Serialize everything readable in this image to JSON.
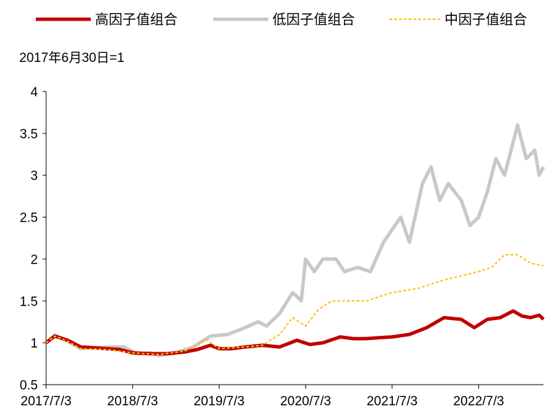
{
  "chart_data": {
    "type": "line",
    "title": "",
    "unit_note": "2017年6月30日=1",
    "xlabel": "",
    "ylabel": "",
    "ylim": [
      0.5,
      4
    ],
    "yticks": [
      "0.5",
      "1",
      "1.5",
      "2",
      "2.5",
      "3",
      "3.5",
      "4"
    ],
    "yticks_values": [
      0.5,
      1,
      1.5,
      2,
      2.5,
      3,
      3.5,
      4
    ],
    "xlim": [
      2017.5,
      2023.25
    ],
    "xticks": [
      "2017/7/3",
      "2018/7/3",
      "2019/7/3",
      "2020/7/3",
      "2021/7/3",
      "2022/7/3"
    ],
    "xticks_values": [
      2017.5,
      2018.5,
      2019.5,
      2020.5,
      2021.5,
      2022.5
    ],
    "legend_position": "top",
    "series": [
      {
        "name": "高因子值组合",
        "color": "#C00000",
        "style": "solid-thick",
        "x": [
          2017.5,
          2017.6,
          2017.75,
          2017.9,
          2018.05,
          2018.2,
          2018.35,
          2018.5,
          2018.7,
          2018.9,
          2019.1,
          2019.25,
          2019.4,
          2019.5,
          2019.65,
          2019.8,
          2020.0,
          2020.2,
          2020.4,
          2020.55,
          2020.7,
          2020.9,
          2021.05,
          2021.2,
          2021.35,
          2021.5,
          2021.7,
          2021.9,
          2022.1,
          2022.3,
          2022.45,
          2022.6,
          2022.75,
          2022.9,
          2023.0,
          2023.1,
          2023.2,
          2023.25
        ],
        "y": [
          1.0,
          1.08,
          1.03,
          0.95,
          0.94,
          0.93,
          0.92,
          0.88,
          0.87,
          0.87,
          0.89,
          0.92,
          0.97,
          0.93,
          0.93,
          0.95,
          0.97,
          0.95,
          1.03,
          0.98,
          1.0,
          1.07,
          1.05,
          1.05,
          1.06,
          1.07,
          1.1,
          1.18,
          1.3,
          1.28,
          1.18,
          1.28,
          1.3,
          1.38,
          1.32,
          1.3,
          1.33,
          1.28
        ]
      },
      {
        "name": "低因子值组合",
        "color": "#C8C8C8",
        "style": "solid-thick",
        "x": [
          2017.5,
          2017.6,
          2017.75,
          2017.9,
          2018.05,
          2018.2,
          2018.4,
          2018.55,
          2018.7,
          2018.8,
          2019.0,
          2019.2,
          2019.4,
          2019.6,
          2019.8,
          2019.95,
          2020.05,
          2020.2,
          2020.35,
          2020.45,
          2020.5,
          2020.6,
          2020.7,
          2020.85,
          2020.95,
          2021.1,
          2021.25,
          2021.4,
          2021.6,
          2021.7,
          2021.85,
          2021.95,
          2022.05,
          2022.15,
          2022.3,
          2022.4,
          2022.5,
          2022.6,
          2022.7,
          2022.8,
          2022.95,
          2023.05,
          2023.15,
          2023.2,
          2023.25
        ],
        "y": [
          1.0,
          1.09,
          1.02,
          0.93,
          0.94,
          0.95,
          0.95,
          0.87,
          0.88,
          0.85,
          0.88,
          0.95,
          1.08,
          1.1,
          1.18,
          1.25,
          1.2,
          1.35,
          1.6,
          1.5,
          2.0,
          1.85,
          2.0,
          2.0,
          1.85,
          1.9,
          1.85,
          2.2,
          2.5,
          2.2,
          2.9,
          3.1,
          2.7,
          2.9,
          2.7,
          2.4,
          2.5,
          2.8,
          3.2,
          3.0,
          3.6,
          3.2,
          3.3,
          3.0,
          3.1
        ]
      },
      {
        "name": "中因子值组合",
        "color": "#FFC000",
        "style": "dashed",
        "x": [
          2017.5,
          2017.6,
          2017.75,
          2017.9,
          2018.2,
          2018.5,
          2018.8,
          2019.1,
          2019.35,
          2019.5,
          2019.8,
          2020.0,
          2020.2,
          2020.35,
          2020.5,
          2020.65,
          2020.8,
          2021.0,
          2021.2,
          2021.5,
          2021.8,
          2022.1,
          2022.3,
          2022.5,
          2022.65,
          2022.8,
          2022.95,
          2023.1,
          2023.25
        ],
        "y": [
          1.0,
          1.08,
          1.02,
          0.93,
          0.92,
          0.88,
          0.86,
          0.9,
          1.04,
          0.93,
          0.95,
          0.97,
          1.1,
          1.3,
          1.2,
          1.4,
          1.5,
          1.5,
          1.5,
          1.6,
          1.65,
          1.75,
          1.8,
          1.85,
          1.9,
          2.05,
          2.05,
          1.95,
          1.92
        ]
      }
    ]
  }
}
